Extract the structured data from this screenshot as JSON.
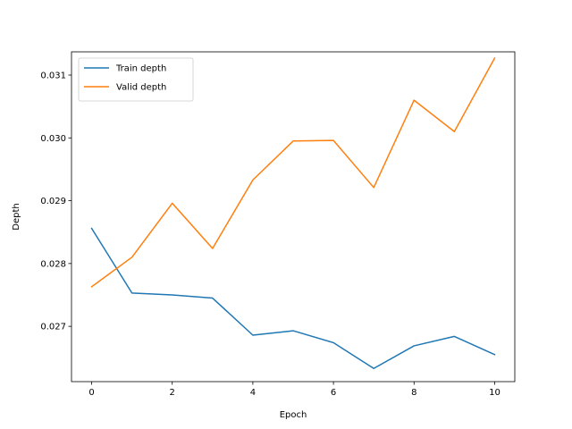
{
  "chart_data": {
    "type": "line",
    "title": "",
    "xlabel": "Epoch",
    "ylabel": "Depth",
    "xlim": [
      -0.5,
      10.5
    ],
    "ylim": [
      0.02612,
      0.03137
    ],
    "x_ticks": [
      0,
      2,
      4,
      6,
      8,
      10
    ],
    "y_ticks": [
      0.027,
      0.028,
      0.029,
      0.03,
      0.031
    ],
    "y_tick_labels": [
      "0.027",
      "0.028",
      "0.029",
      "0.030",
      "0.031"
    ],
    "grid": false,
    "legend_position": "top-left",
    "x": [
      0,
      1,
      2,
      3,
      4,
      5,
      6,
      7,
      8,
      9,
      10
    ],
    "series": [
      {
        "name": "Train depth",
        "color": "#1f77b4",
        "values": [
          0.02856,
          0.02753,
          0.0275,
          0.02745,
          0.02686,
          0.02693,
          0.02674,
          0.02633,
          0.02669,
          0.02684,
          0.02655
        ]
      },
      {
        "name": "Valid depth",
        "color": "#ff7f0e",
        "values": [
          0.02763,
          0.0281,
          0.02896,
          0.02824,
          0.02933,
          0.02995,
          0.02996,
          0.02921,
          0.0306,
          0.0301,
          0.03127
        ]
      }
    ]
  }
}
